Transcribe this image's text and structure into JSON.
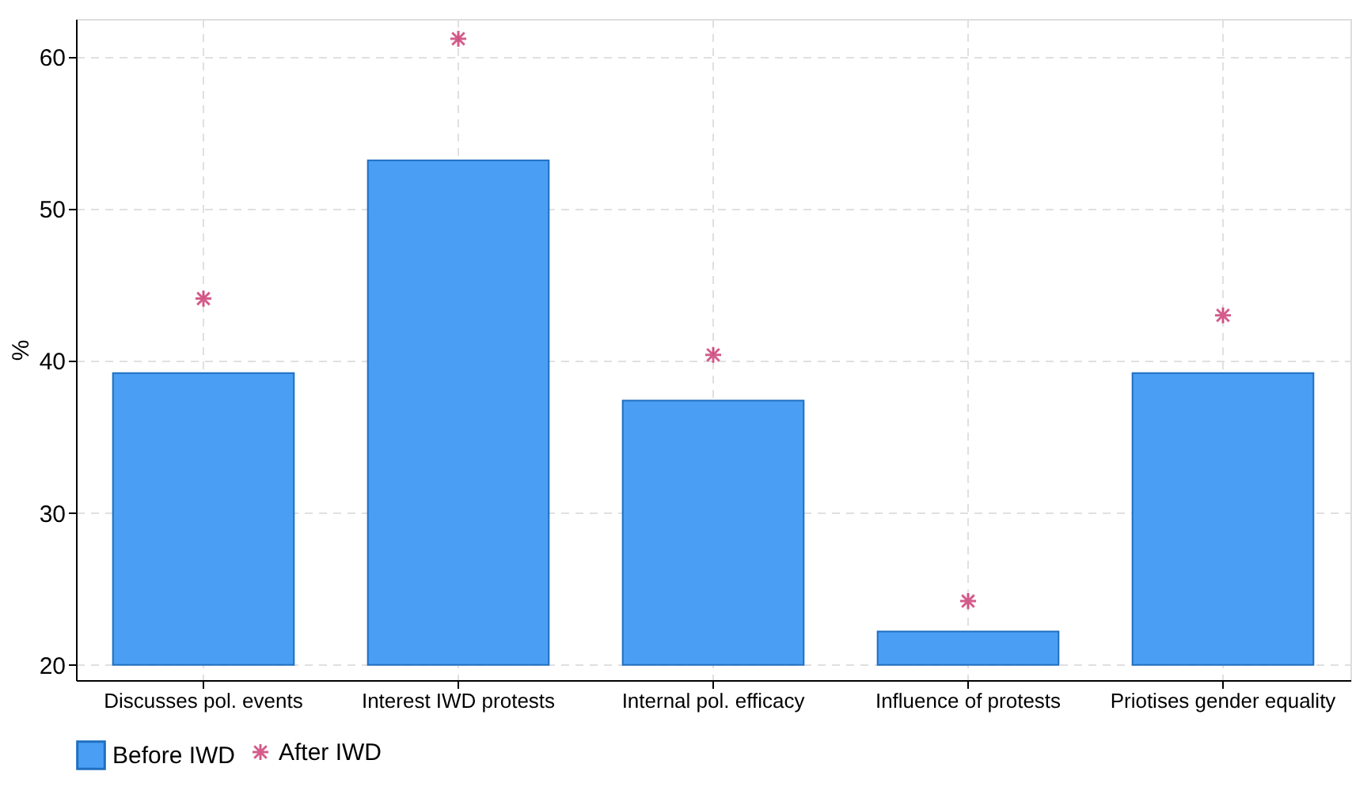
{
  "chart_data": {
    "type": "bar",
    "ylabel": "%",
    "categories": [
      "Discusses pol. events",
      "Interest IWD protests",
      "Internal pol. efficacy",
      "Influence of protests",
      "Priotises gender equality"
    ],
    "series": [
      {
        "name": "Before IWD",
        "color": "#4a9ff5",
        "base": [
          20,
          20,
          20,
          20,
          20
        ],
        "values": [
          19.2,
          33.2,
          17.4,
          2.2,
          19.2
        ]
      },
      {
        "name": "After IWD",
        "color": "#c2185b",
        "type": "scatter",
        "marker": "cross",
        "x": [
          "Discusses pol. events",
          "Interest IWD protests",
          "Internal pol. efficacy",
          "Influence of protests",
          "Priotises gender equality"
        ],
        "values": [
          44.1,
          61.2,
          40.4,
          24.2,
          43.0
        ]
      }
    ],
    "ylim": [
      19,
      62.5
    ],
    "yticks": [
      20,
      30,
      40,
      50,
      60
    ],
    "grid": true,
    "legend": "bottom"
  }
}
